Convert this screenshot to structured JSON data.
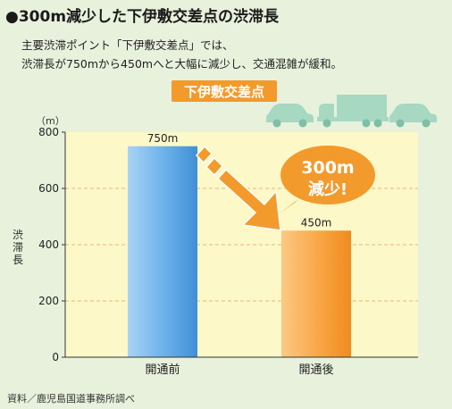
{
  "title": "●300m減少した下伊敷交差点の渋滞長",
  "subtitle_lines": [
    "主要渋滞ポイント「下伊敷交差点」では、",
    "渋滞長が750mから450mへと大幅に減少し、交通混雑が緩和。"
  ],
  "place_badge": "下伊敷交差点",
  "callout": {
    "line1": "300m",
    "line2": "減少!"
  },
  "source": "資料／鹿児島国道事務所調べ",
  "colors": {
    "background": "#e8f1dc",
    "plot_background": "#fdf8c8",
    "before_bar": "#6fb3ea",
    "after_bar": "#f8a94a",
    "accent": "#f39a2c"
  },
  "chart_data": {
    "type": "bar",
    "categories": [
      "開通前",
      "開通後"
    ],
    "values": [
      750,
      450
    ],
    "value_labels": [
      "750m",
      "450m"
    ],
    "ylabel": "渋滞長",
    "unit": "（m）",
    "ylim": [
      0,
      800
    ],
    "yticks": [
      0,
      200,
      400,
      600,
      800
    ],
    "grid": true
  }
}
